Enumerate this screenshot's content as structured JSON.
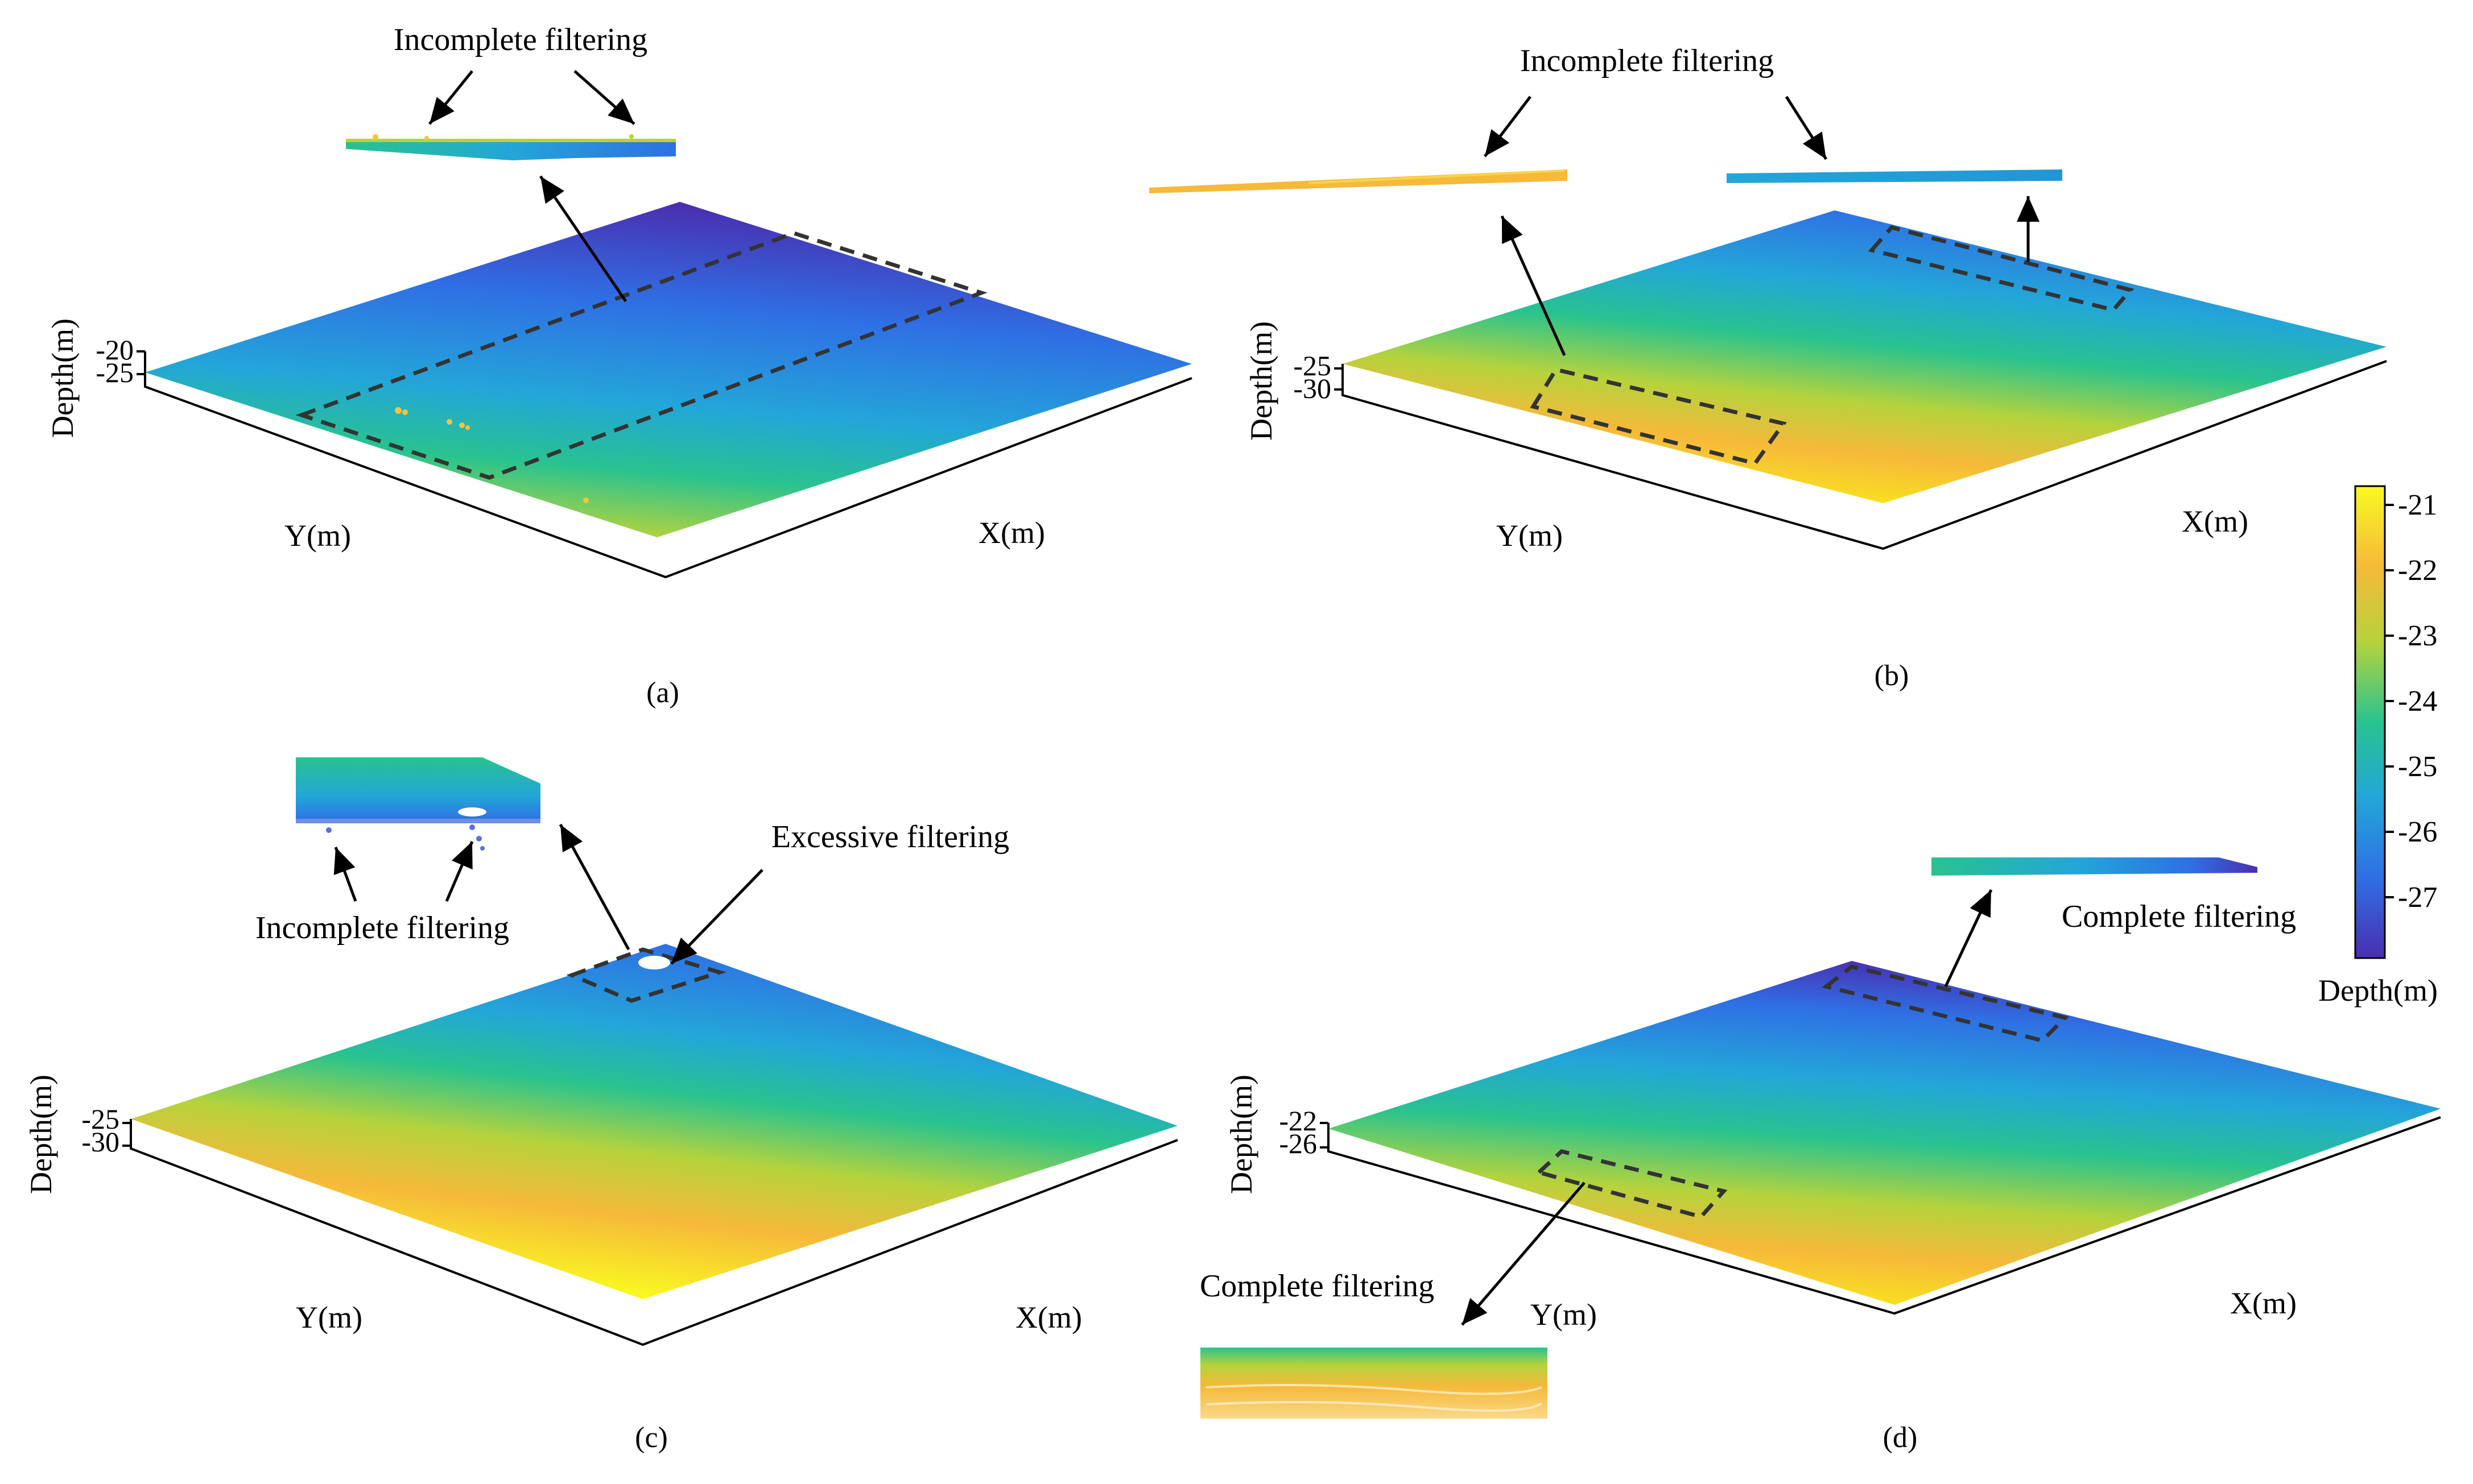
{
  "figure": {
    "panels": [
      {
        "id": "a",
        "label": "(a)",
        "x_axis_label": "X(m)",
        "y_axis_label": "Y(m)",
        "depth_axis_label": "Depth(m)",
        "depth_ticks": [
          "-20",
          "-25"
        ],
        "annotations": [
          "Incomplete filtering"
        ]
      },
      {
        "id": "b",
        "label": "(b)",
        "x_axis_label": "X(m)",
        "y_axis_label": "Y(m)",
        "depth_axis_label": "Depth(m)",
        "depth_ticks": [
          "-25",
          "-30"
        ],
        "annotations": [
          "Incomplete filtering"
        ]
      },
      {
        "id": "c",
        "label": "(c)",
        "x_axis_label": "X(m)",
        "y_axis_label": "Y(m)",
        "depth_axis_label": "Depth(m)",
        "depth_ticks": [
          "-25",
          "-30"
        ],
        "annotations": [
          "Incomplete filtering",
          "Excessive filtering"
        ]
      },
      {
        "id": "d",
        "label": "(d)",
        "x_axis_label": "X(m)",
        "y_axis_label": "Y(m)",
        "depth_axis_label": "Depth(m)",
        "depth_ticks": [
          "-22",
          "-26"
        ],
        "annotations": [
          "Complete filtering",
          "Complete filtering"
        ]
      }
    ],
    "colorbar": {
      "label": "Depth(m)",
      "ticks": [
        "-21",
        "-22",
        "-23",
        "-24",
        "-25",
        "-26",
        "-27"
      ],
      "colors": [
        "#f9f921",
        "#f6b93a",
        "#b6d33c",
        "#28c38f",
        "#23a6d8",
        "#2f6fe4",
        "#4a2fb0"
      ]
    }
  }
}
